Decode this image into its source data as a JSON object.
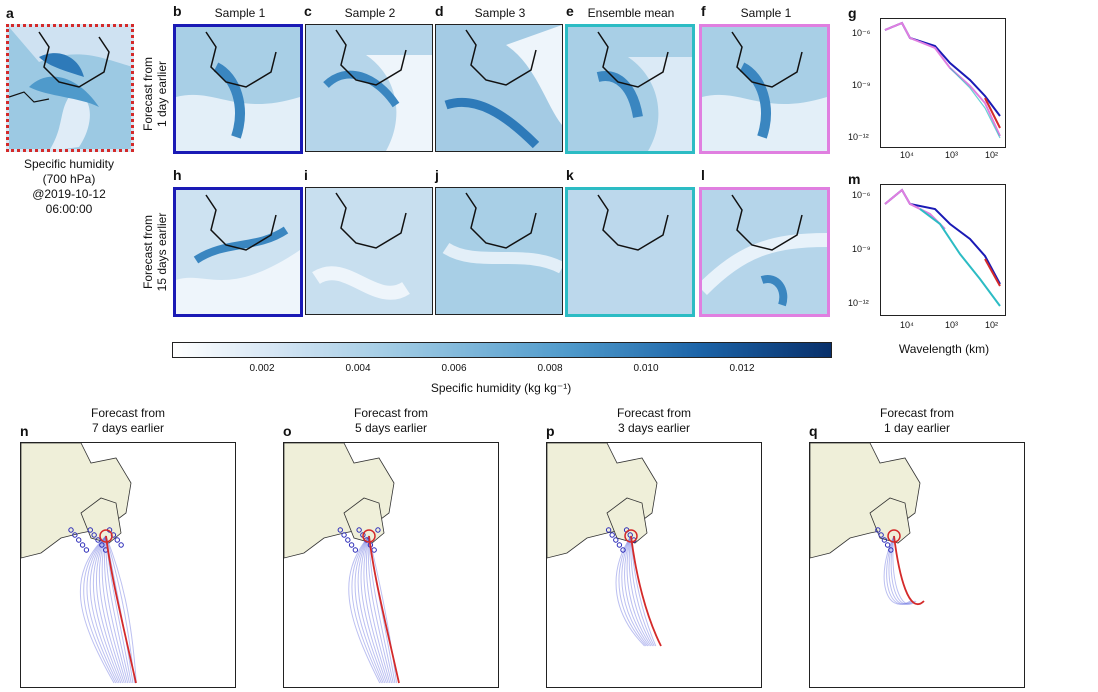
{
  "panels_top": {
    "a": {
      "letter": "a"
    },
    "b": {
      "letter": "b",
      "title": "Sample 1"
    },
    "c": {
      "letter": "c",
      "title": "Sample 2"
    },
    "d": {
      "letter": "d",
      "title": "Sample 3"
    },
    "e": {
      "letter": "e",
      "title": "Ensemble mean"
    },
    "f": {
      "letter": "f",
      "title": "Sample 1"
    },
    "g": {
      "letter": "g"
    }
  },
  "panels_mid": {
    "h": "h",
    "i": "i",
    "j": "j",
    "k": "k",
    "l": "l",
    "m": "m"
  },
  "row_labels": {
    "row1": "Forecast from\n1 day earlier",
    "row1_a": "Forecast from",
    "row1_b": "1 day earlier",
    "row2_a": "Forecast from",
    "row2_b": "15 days earlier"
  },
  "caption_a": {
    "l1": "Specific humidity",
    "l2": "(700 hPa)",
    "l3": "@2019-10-12",
    "l4": "06:00:00"
  },
  "colorbar": {
    "ticks": [
      "0.002",
      "0.004",
      "0.006",
      "0.008",
      "0.010",
      "0.012"
    ],
    "label": "Specific humidity (kg kg⁻¹)"
  },
  "spectrum": {
    "yticks": [
      "10⁻⁶",
      "10⁻⁹",
      "10⁻¹²"
    ],
    "xticks": [
      "10⁴",
      "10³",
      "10²"
    ],
    "xlabel": "Wavelength (km)"
  },
  "tracks": [
    {
      "letter": "n",
      "l1": "Forecast from",
      "l2": "7 days earlier"
    },
    {
      "letter": "o",
      "l1": "Forecast from",
      "l2": "5 days earlier"
    },
    {
      "letter": "p",
      "l1": "Forecast from",
      "l2": "3 days earlier"
    },
    {
      "letter": "q",
      "l1": "Forecast from",
      "l2": "1 day earlier"
    }
  ],
  "colors": {
    "sample": "#1a1ab5",
    "mean": "#2cbcc4",
    "other": "#e07fe0",
    "truth": "#d42a2a"
  }
}
